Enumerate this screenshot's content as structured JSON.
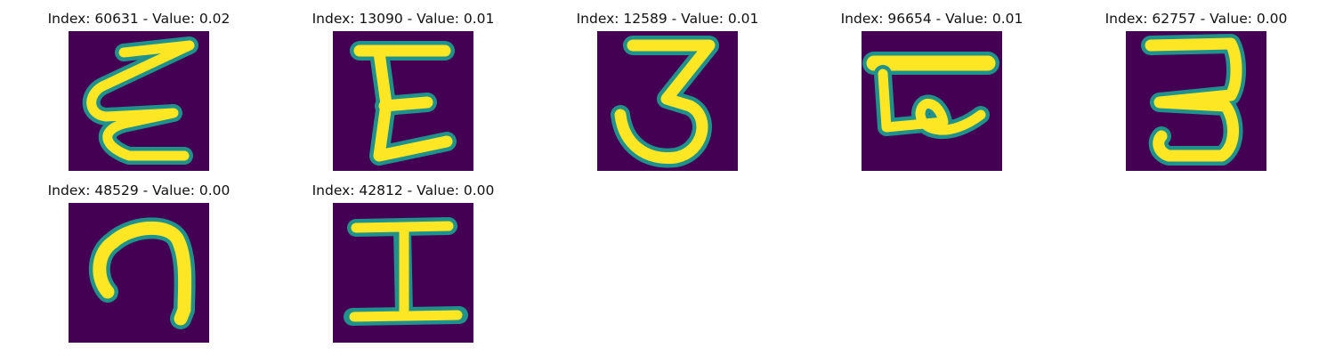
{
  "figure": {
    "background_color": "#440154",
    "stroke_color": "#21918c",
    "fill_color": "#fde725",
    "mid_color": "#5ec962",
    "panels": [
      {
        "title": "Index: 60631 - Value: 0.02",
        "index": 60631,
        "value": 0.02
      },
      {
        "title": "Index: 13090 - Value: 0.01",
        "index": 13090,
        "value": 0.01
      },
      {
        "title": "Index: 12589 - Value: 0.01",
        "index": 12589,
        "value": 0.01
      },
      {
        "title": "Index: 96654 - Value: 0.01",
        "index": 96654,
        "value": 0.01
      },
      {
        "title": "Index: 62757 - Value: 0.00",
        "index": 62757,
        "value": 0.0
      },
      {
        "title": "Index: 48529 - Value: 0.00",
        "index": 48529,
        "value": 0.0
      },
      {
        "title": "Index: 42812 - Value: 0.00",
        "index": 42812,
        "value": 0.0
      }
    ]
  }
}
